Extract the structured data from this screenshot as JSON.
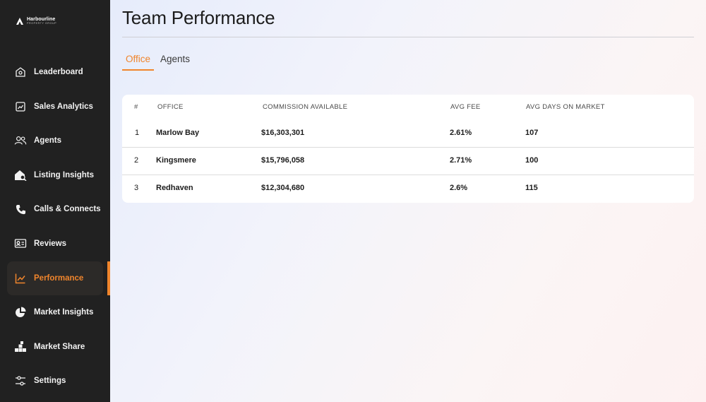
{
  "brand": {
    "name": "Harbourline",
    "subtitle": "PROPERTY GROUP"
  },
  "sidebar": {
    "items": [
      {
        "label": "Leaderboard",
        "icon": "home-badge-icon"
      },
      {
        "label": "Sales Analytics",
        "icon": "chart-clipboard-icon"
      },
      {
        "label": "Agents",
        "icon": "users-icon"
      },
      {
        "label": "Listing Insights",
        "icon": "house-search-icon"
      },
      {
        "label": "Calls & Connects",
        "icon": "phone-icon"
      },
      {
        "label": "Reviews",
        "icon": "review-card-icon"
      },
      {
        "label": "Performance",
        "icon": "trend-line-icon",
        "active": true
      },
      {
        "label": "Market Insights",
        "icon": "pie-chart-icon"
      },
      {
        "label": "Market Share",
        "icon": "blocks-icon"
      },
      {
        "label": "Settings",
        "icon": "sliders-icon"
      }
    ]
  },
  "page": {
    "title": "Team Performance"
  },
  "tabs": [
    {
      "label": "Office",
      "active": true
    },
    {
      "label": "Agents",
      "active": false
    }
  ],
  "table": {
    "headers": [
      "#",
      "OFFICE",
      "COMMISSION AVAILABLE",
      "AVG FEE",
      "AVG DAYS ON MARKET"
    ],
    "rows": [
      [
        "1",
        "Marlow Bay",
        "$16,303,301",
        "2.61%",
        "107"
      ],
      [
        "2",
        "Kingsmere",
        "$15,796,058",
        "2.71%",
        "100"
      ],
      [
        "3",
        "Redhaven",
        "$12,304,680",
        "2.6%",
        "115"
      ]
    ]
  },
  "colors": {
    "accent": "#f0852c",
    "sidebar_bg": "#212121"
  }
}
